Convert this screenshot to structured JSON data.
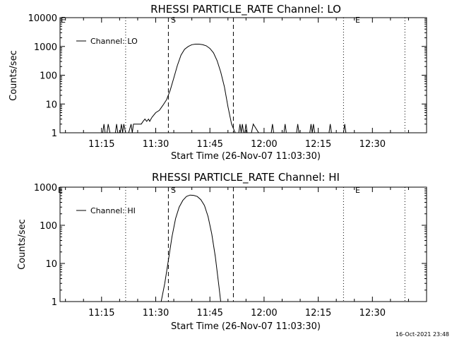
{
  "start_label": "Start Time (26-Nov-07 11:03:30)",
  "timestamp": "16-Oct-2021 23:48",
  "marker_labels": {
    "start": "S",
    "end": "E"
  },
  "chart_data": [
    {
      "type": "line",
      "title": "RHESSI PARTICLE_RATE Channel: LO",
      "xlabel": "Start Time (26-Nov-07 11:03:30)",
      "ylabel": "Counts/sec",
      "yscale": "log",
      "xlim": [
        "11:03:30",
        "12:45:00"
      ],
      "ylim": [
        1,
        10000
      ],
      "x_ticks": [
        "11:15",
        "11:30",
        "11:45",
        "12:00",
        "12:15",
        "12:30"
      ],
      "y_ticks": [
        "1",
        "10",
        "100",
        "1000",
        "10000"
      ],
      "legend": "top-left",
      "series": [
        {
          "name": "Channel: LO",
          "x": [
            "11:03:30",
            "11:15:20",
            "11:15:40",
            "11:16:00",
            "11:16:30",
            "11:16:50",
            "11:17:20",
            "11:18:50",
            "11:19:10",
            "11:19:30",
            "11:20:10",
            "11:20:30",
            "11:20:50",
            "11:21:10",
            "11:21:40",
            "11:22:30",
            "11:23:10",
            "11:23:30",
            "11:23:50",
            "11:24:20",
            "11:24:40",
            "11:25:00",
            "11:25:30",
            "11:26:00",
            "11:26:30",
            "11:27:00",
            "11:27:30",
            "11:28:00",
            "11:28:20",
            "11:28:40",
            "11:29:00",
            "11:30:00",
            "11:31:00",
            "11:32:00",
            "11:33:00",
            "11:34:00",
            "11:35:00",
            "11:36:00",
            "11:37:00",
            "11:38:00",
            "11:39:00",
            "11:40:00",
            "11:41:00",
            "11:42:00",
            "11:43:00",
            "11:44:00",
            "11:45:00",
            "11:46:00",
            "11:47:00",
            "11:48:00",
            "11:49:00",
            "11:50:00",
            "11:51:00",
            "11:52:00",
            "11:53:00",
            "11:53:20",
            "11:53:40",
            "11:54:00",
            "11:54:20",
            "11:54:40",
            "11:55:00",
            "11:55:20",
            "11:55:40",
            "11:56:30",
            "11:57:00",
            "11:58:30",
            "11:59:00",
            "11:59:20",
            "12:02:00",
            "12:02:20",
            "12:02:40",
            "12:05:30",
            "12:05:50",
            "12:06:10",
            "12:09:00",
            "12:09:20",
            "12:09:40",
            "12:12:40",
            "12:13:00",
            "12:13:20",
            "12:13:40",
            "12:14:00",
            "12:14:20",
            "12:18:00",
            "12:18:20",
            "12:18:40",
            "12:22:00",
            "12:22:20",
            "12:22:40",
            "12:45:00"
          ],
          "values": [
            1,
            1,
            2,
            1,
            1,
            2,
            1,
            1,
            2,
            1,
            1,
            2,
            1,
            2,
            1,
            1,
            2,
            1,
            2,
            2,
            2,
            2,
            2,
            2,
            2.5,
            3,
            2.5,
            3,
            2.5,
            3,
            3.5,
            5,
            6,
            9,
            14,
            30,
            80,
            220,
            500,
            800,
            1000,
            1150,
            1200,
            1200,
            1150,
            1050,
            850,
            600,
            320,
            130,
            40,
            8,
            2,
            1,
            1,
            2,
            1,
            2,
            1,
            1,
            2,
            1,
            1,
            1,
            2,
            1,
            1,
            1,
            1,
            2,
            1,
            1,
            2,
            1,
            1,
            2,
            1,
            1,
            2,
            1,
            2,
            1,
            1,
            1,
            2,
            1,
            1,
            2,
            1,
            1
          ]
        }
      ]
    },
    {
      "type": "line",
      "title": "RHESSI PARTICLE_RATE Channel: HI",
      "xlabel": "Start Time (26-Nov-07 11:03:30)",
      "ylabel": "Counts/sec",
      "yscale": "log",
      "xlim": [
        "11:03:30",
        "12:45:00"
      ],
      "ylim": [
        1,
        1000
      ],
      "x_ticks": [
        "11:15",
        "11:30",
        "11:45",
        "12:00",
        "12:15",
        "12:30"
      ],
      "y_ticks": [
        "1",
        "10",
        "100",
        "1000"
      ],
      "legend": "top-left",
      "series": [
        {
          "name": "Channel: HI",
          "x": [
            "11:31:30",
            "11:32:30",
            "11:33:30",
            "11:34:30",
            "11:35:30",
            "11:36:30",
            "11:37:30",
            "11:38:30",
            "11:39:30",
            "11:40:30",
            "11:41:30",
            "11:42:30",
            "11:43:30",
            "11:44:30",
            "11:45:30",
            "11:46:30",
            "11:47:30",
            "11:48:00"
          ],
          "values": [
            1,
            3,
            12,
            50,
            150,
            300,
            450,
            570,
            620,
            610,
            570,
            470,
            330,
            170,
            60,
            15,
            2.5,
            1
          ]
        }
      ]
    }
  ]
}
